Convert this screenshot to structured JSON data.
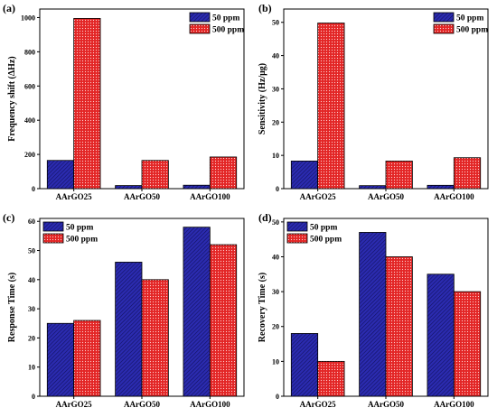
{
  "series_colors": {
    "50 ppm": "#2b2bb0",
    "500 ppm": "#e32626"
  },
  "chart_data": [
    {
      "panel": "(a)",
      "type": "bar",
      "categories": [
        "AArGO25",
        "AArGO50",
        "AArGO100"
      ],
      "series": [
        {
          "name": "50 ppm",
          "values": [
            165,
            18,
            20
          ]
        },
        {
          "name": "500 ppm",
          "values": [
            995,
            165,
            185
          ]
        }
      ],
      "ylabel": "Frequency shift (ΔHz)",
      "ylim": [
        0,
        1050
      ],
      "yticks": [
        0,
        200,
        400,
        600,
        800,
        1000
      ],
      "legend": "top-right",
      "grid": false
    },
    {
      "panel": "(b)",
      "type": "bar",
      "categories": [
        "AArGO25",
        "AArGO50",
        "AArGO100"
      ],
      "series": [
        {
          "name": "50 ppm",
          "values": [
            8.3,
            0.9,
            1.0
          ]
        },
        {
          "name": "500 ppm",
          "values": [
            49.8,
            8.3,
            9.3
          ]
        }
      ],
      "ylabel": "Sensitivity (Hz/μg)",
      "ylim": [
        0,
        54
      ],
      "yticks": [
        0,
        10,
        20,
        30,
        40,
        50
      ],
      "legend": "top-right",
      "grid": false
    },
    {
      "panel": "(c)",
      "type": "bar",
      "categories": [
        "AArGO25",
        "AArGO50",
        "AArGO100"
      ],
      "series": [
        {
          "name": "50 ppm",
          "values": [
            25,
            46,
            58
          ]
        },
        {
          "name": "500 ppm",
          "values": [
            26,
            40,
            52
          ]
        }
      ],
      "ylabel": "Response Time (s)",
      "ylim": [
        0,
        61
      ],
      "yticks": [
        0,
        10,
        20,
        30,
        40,
        50,
        60
      ],
      "legend": "top-left",
      "grid": false
    },
    {
      "panel": "(d)",
      "type": "bar",
      "categories": [
        "AArGO25",
        "AArGO50",
        "AArGO100"
      ],
      "series": [
        {
          "name": "50 ppm",
          "values": [
            18,
            47,
            35
          ]
        },
        {
          "name": "500 ppm",
          "values": [
            10,
            40,
            30
          ]
        }
      ],
      "ylabel": "Recovery Time (s)",
      "ylim": [
        0,
        51
      ],
      "yticks": [
        0,
        10,
        20,
        30,
        40,
        50
      ],
      "legend": "top-left",
      "grid": false
    }
  ]
}
